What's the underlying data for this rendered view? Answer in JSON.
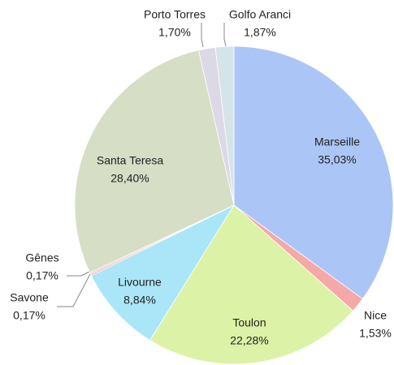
{
  "chart_data": {
    "type": "pie",
    "categories": [
      "Marseille",
      "Nice",
      "Toulon",
      "Livourne",
      "Savone",
      "Gênes",
      "Santa Teresa",
      "Porto Torres",
      "Golfo Aranci"
    ],
    "values": [
      35.03,
      1.53,
      22.28,
      8.84,
      0.17,
      0.17,
      28.4,
      1.7,
      1.87
    ],
    "value_labels": [
      "35,03%",
      "1,53%",
      "22,28%",
      "8,84%",
      "0,17%",
      "0,17%",
      "28,40%",
      "1,70%",
      "1,87%"
    ],
    "colors": [
      "#abc6f6",
      "#f5a8a8",
      "#dcf2a6",
      "#aae6f8",
      "#f2b0b0",
      "#e6c8c8",
      "#d6dec6",
      "#ddd8e6",
      "#d4e4e8"
    ]
  }
}
